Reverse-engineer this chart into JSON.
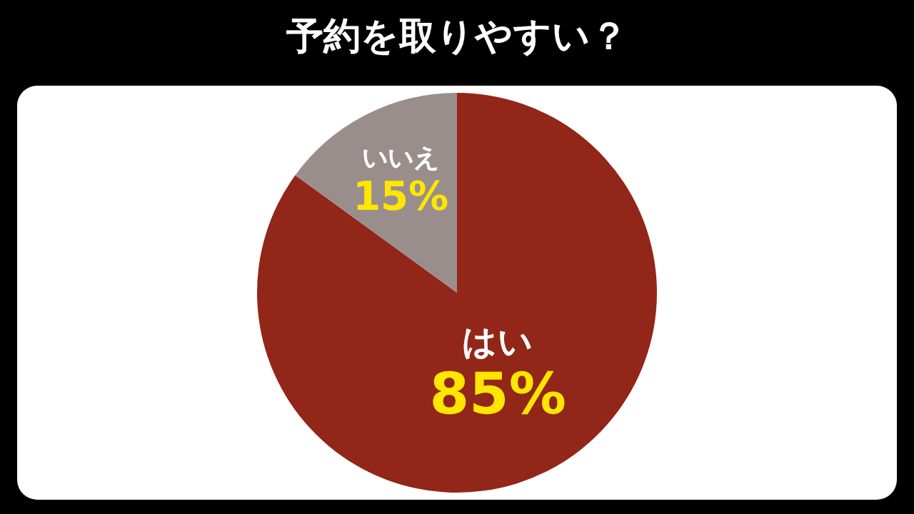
{
  "chart_data": {
    "type": "pie",
    "title": "予約を取りやすい？",
    "categories": [
      "はい",
      "いいえ"
    ],
    "values": [
      85,
      15
    ],
    "colors": [
      "#922618",
      "#9a8e8d"
    ],
    "value_labels": [
      "85%",
      "15%"
    ],
    "legend": false
  }
}
